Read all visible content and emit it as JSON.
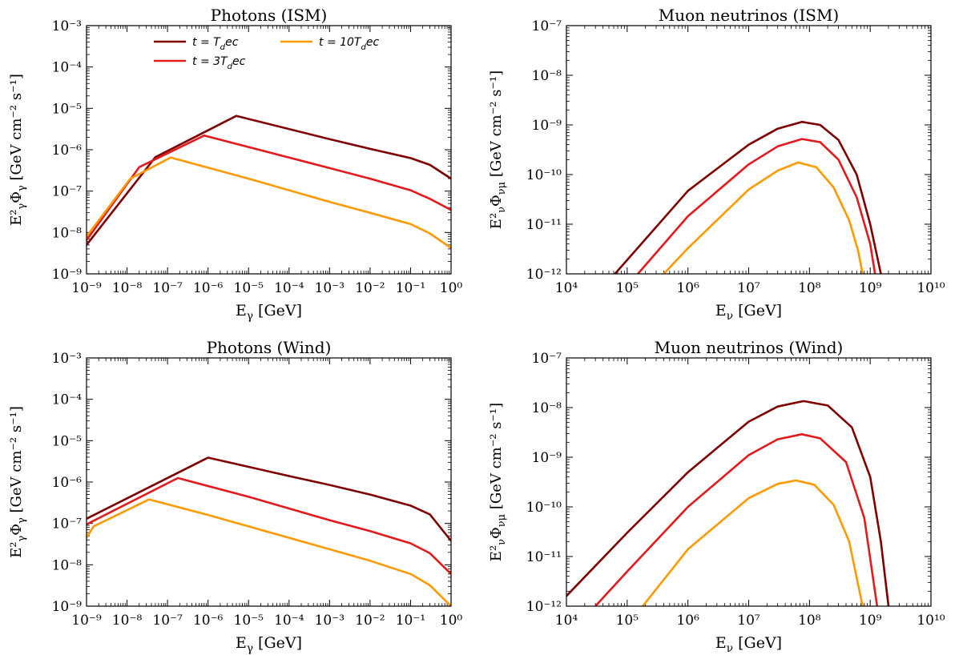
{
  "chart_data": [
    {
      "type": "line",
      "title": "Photons (ISM)",
      "xlabel": "E_γ [GeV]",
      "ylabel": "E²_γΦ_γ [GeV cm⁻² s⁻¹]",
      "xscale": "log",
      "yscale": "log",
      "xlim": [
        1e-09,
        1
      ],
      "ylim": [
        1e-09,
        0.001
      ],
      "xtick_labels": [
        "10⁻⁹",
        "10⁻⁸",
        "10⁻⁷",
        "10⁻⁶",
        "10⁻⁵",
        "10⁻⁴",
        "10⁻³",
        "10⁻²",
        "10⁻¹",
        "10⁰"
      ],
      "ytick_labels": [
        "10⁻⁹",
        "10⁻⁸",
        "10⁻⁷",
        "10⁻⁶",
        "10⁻⁵",
        "10⁻⁴",
        "10⁻³"
      ],
      "legend": {
        "placement": "top-center",
        "entries": [
          "t = T_dec",
          "t = 3T_dec",
          "t = 10T_dec"
        ]
      },
      "series": [
        {
          "name": "t = T_dec",
          "color": "#7f0000",
          "x": [
            1e-09,
            5e-08,
            5e-06,
            0.001,
            0.01,
            0.1,
            0.3,
            1
          ],
          "y": [
            5e-09,
            6.6e-07,
            6.6e-06,
            1.8e-06,
            1.05e-06,
            6.3e-07,
            4.3e-07,
            2e-07
          ]
        },
        {
          "name": "t = 3T_dec",
          "color": "#e31a1c",
          "x": [
            1e-09,
            2e-08,
            8e-07,
            0.0001,
            0.001,
            0.01,
            0.1,
            0.3,
            1
          ],
          "y": [
            6.5e-09,
            3.8e-07,
            2.2e-06,
            6.5e-07,
            3.6e-07,
            2e-07,
            1.05e-07,
            6.5e-08,
            3.5e-08
          ]
        },
        {
          "name": "t = 10T_dec",
          "color": "#ff9900",
          "x": [
            1e-09,
            1.2e-08,
            1.2e-07,
            1e-05,
            0.001,
            0.01,
            0.1,
            0.3,
            1
          ],
          "y": [
            8e-09,
            2e-07,
            6.5e-07,
            2e-07,
            5.5e-08,
            3e-08,
            1.6e-08,
            9.5e-09,
            4.2e-09
          ]
        }
      ]
    },
    {
      "type": "line",
      "title": "Muon neutrinos (ISM)",
      "xlabel": "E_ν [GeV]",
      "ylabel": "E²_νΦ_ν_μ [GeV cm⁻² s⁻¹]",
      "xscale": "log",
      "yscale": "log",
      "xlim": [
        10000.0,
        10000000000.0
      ],
      "ylim": [
        1e-12,
        1e-07
      ],
      "xtick_labels": [
        "10⁴",
        "10⁵",
        "10⁶",
        "10⁷",
        "10⁸",
        "10⁹",
        "10¹⁰"
      ],
      "ytick_labels": [
        "10⁻¹²",
        "10⁻¹¹",
        "10⁻¹⁰",
        "10⁻⁹",
        "10⁻⁸",
        "10⁻⁷"
      ],
      "series": [
        {
          "name": "t = T_dec",
          "color": "#7f0000",
          "x": [
            63000.0,
            1000000.0,
            10000000.0,
            30000000.0,
            75000000.0,
            150000000.0,
            300000000.0,
            600000000.0,
            1000000000.0,
            1500000000.0
          ],
          "y": [
            1e-12,
            4.7e-11,
            4e-10,
            8.4e-10,
            1.15e-09,
            1e-09,
            5e-10,
            1e-10,
            1e-11,
            1e-12
          ]
        },
        {
          "name": "t = 3T_dec",
          "color": "#e31a1c",
          "x": [
            150000.0,
            1000000.0,
            10000000.0,
            30000000.0,
            75000000.0,
            150000000.0,
            300000000.0,
            600000000.0,
            1000000000.0,
            1200000000.0
          ],
          "y": [
            1e-12,
            1.45e-11,
            1.6e-10,
            3.7e-10,
            5.2e-10,
            4.5e-10,
            2e-10,
            3.5e-11,
            4e-12,
            1e-12
          ]
        },
        {
          "name": "t = 10T_dec",
          "color": "#ff9900",
          "x": [
            400000.0,
            1000000.0,
            10000000.0,
            30000000.0,
            65000000.0,
            130000000.0,
            250000000.0,
            450000000.0,
            630000000.0,
            750000000.0
          ],
          "y": [
            1e-12,
            3.3e-12,
            5e-11,
            1.2e-10,
            1.75e-10,
            1.4e-10,
            5.5e-11,
            1.2e-11,
            3e-12,
            1e-12
          ]
        }
      ]
    },
    {
      "type": "line",
      "title": "Photons (Wind)",
      "xlabel": "E_γ [GeV]",
      "ylabel": "E²_γΦ_γ [GeV cm⁻² s⁻¹]",
      "xscale": "log",
      "yscale": "log",
      "xlim": [
        1e-09,
        1
      ],
      "ylim": [
        1e-09,
        0.001
      ],
      "xtick_labels": [
        "10⁻⁹",
        "10⁻⁸",
        "10⁻⁷",
        "10⁻⁶",
        "10⁻⁵",
        "10⁻⁴",
        "10⁻³",
        "10⁻²",
        "10⁻¹",
        "10⁰"
      ],
      "ytick_labels": [
        "10⁻⁹",
        "10⁻⁸",
        "10⁻⁷",
        "10⁻⁶",
        "10⁻⁵",
        "10⁻⁴",
        "10⁻³"
      ],
      "series": [
        {
          "name": "t = T_dec",
          "color": "#7f0000",
          "x": [
            1e-09,
            1e-06,
            0.0001,
            0.001,
            0.01,
            0.1,
            0.3,
            1
          ],
          "y": [
            1.3e-07,
            3.9e-06,
            1.4e-06,
            8.5e-07,
            5e-07,
            2.7e-07,
            1.65e-07,
            3.8e-08
          ]
        },
        {
          "name": "t = 3T_dec",
          "color": "#e31a1c",
          "x": [
            1e-09,
            1.8e-07,
            1e-05,
            0.001,
            0.01,
            0.1,
            0.3,
            1
          ],
          "y": [
            9.5e-08,
            1.25e-06,
            4.4e-07,
            1.2e-07,
            6.5e-08,
            3.3e-08,
            1.9e-08,
            6e-09
          ]
        },
        {
          "name": "t = 10T_dec",
          "color": "#ff9900",
          "x": [
            1e-09,
            1.5e-09,
            3.5e-08,
            1e-06,
            0.0001,
            0.01,
            0.1,
            0.3,
            1
          ],
          "y": [
            4.5e-08,
            8.5e-08,
            3.8e-07,
            1.6e-07,
            4.5e-08,
            1.25e-08,
            6e-09,
            3.2e-09,
            1e-09
          ]
        }
      ]
    },
    {
      "type": "line",
      "title": "Muon neutrinos (Wind)",
      "xlabel": "E_ν [GeV]",
      "ylabel": "E²_νΦ_ν_μ [GeV cm⁻² s⁻¹]",
      "xscale": "log",
      "yscale": "log",
      "xlim": [
        10000.0,
        10000000000.0
      ],
      "ylim": [
        1e-12,
        1e-07
      ],
      "xtick_labels": [
        "10⁴",
        "10⁵",
        "10⁶",
        "10⁷",
        "10⁸",
        "10⁹",
        "10¹⁰"
      ],
      "ytick_labels": [
        "10⁻¹²",
        "10⁻¹¹",
        "10⁻¹⁰",
        "10⁻⁹",
        "10⁻⁸",
        "10⁻⁷"
      ],
      "series": [
        {
          "name": "t = T_dec",
          "color": "#7f0000",
          "x": [
            10000.0,
            100000.0,
            1000000.0,
            10000000.0,
            30000000.0,
            80000000.0,
            200000000.0,
            500000000.0,
            1000000000.0,
            1500000000.0,
            2000000000.0
          ],
          "y": [
            1.6e-12,
            3e-11,
            5e-10,
            5.2e-09,
            1.05e-08,
            1.35e-08,
            1.1e-08,
            4e-09,
            4e-10,
            2e-11,
            1e-12
          ]
        },
        {
          "name": "t = 3T_dec",
          "color": "#e31a1c",
          "x": [
            30000.0,
            100000.0,
            1000000.0,
            10000000.0,
            30000000.0,
            75000000.0,
            150000000.0,
            400000000.0,
            800000000.0,
            1300000000.0
          ],
          "y": [
            1e-12,
            5e-12,
            1e-10,
            1.1e-09,
            2.3e-09,
            2.9e-09,
            2.4e-09,
            8e-10,
            6e-11,
            1e-12
          ]
        },
        {
          "name": "t = 10T_dec",
          "color": "#ff9900",
          "x": [
            180000.0,
            1000000.0,
            10000000.0,
            30000000.0,
            60000000.0,
            120000000.0,
            250000000.0,
            450000000.0,
            750000000.0
          ],
          "y": [
            1e-12,
            1.4e-11,
            1.5e-10,
            2.9e-10,
            3.4e-10,
            2.8e-10,
            1.1e-10,
            2e-11,
            1e-12
          ]
        }
      ]
    }
  ]
}
